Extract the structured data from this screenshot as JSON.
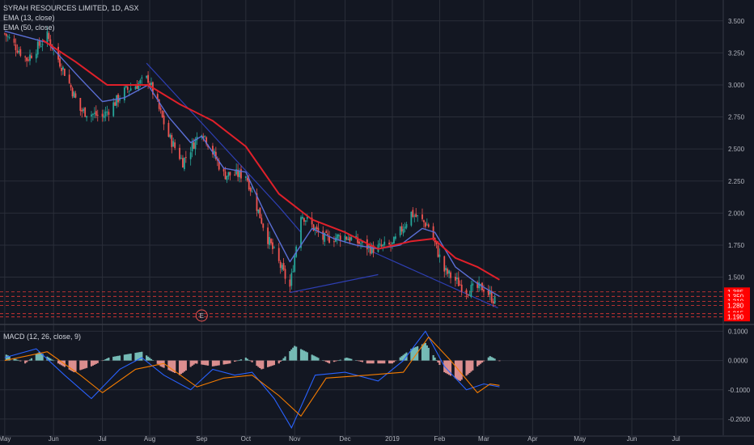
{
  "legend": {
    "symbol": "SYRAH RESOURCES LIMITED, 1D, ASX",
    "ema13": "EMA (13, close)",
    "ema50": "EMA (50, close)",
    "macd": "MACD (12, 26, close, 9)"
  },
  "earnings_marker": "E",
  "colors": {
    "background": "#131722",
    "grid": "#2a2e39",
    "up": "#26a69a",
    "down": "#ef5350",
    "ema13": "#5b6fd6",
    "ema50": "#e0202a",
    "trendline": "#2e3fb3",
    "support": "#e53935",
    "macd_line": "#2962ff",
    "signal_line": "#f57c00",
    "price_tag": "#ff0000"
  },
  "chart_data": [
    {
      "type": "candlestick",
      "title": "SYRAH RESOURCES LIMITED, 1D, ASX",
      "x_tick_labels": [
        "May",
        "Jun",
        "Jul",
        "Aug",
        "Sep",
        "Oct",
        "Nov",
        "Dec",
        "2019",
        "Feb",
        "Mar",
        "Apr",
        "May",
        "Jun",
        "Jul"
      ],
      "y_tick_labels": [
        "3.500",
        "3.250",
        "3.000",
        "2.750",
        "2.500",
        "2.250",
        "2.000",
        "1.750",
        "1.500"
      ],
      "ylim": [
        1.15,
        3.65
      ],
      "grid": true,
      "close_path": [
        {
          "x": "2018-05-01",
          "y": 3.4
        },
        {
          "x": "2018-05-15",
          "y": 3.2
        },
        {
          "x": "2018-05-28",
          "y": 3.38
        },
        {
          "x": "2018-06-08",
          "y": 3.1
        },
        {
          "x": "2018-06-18",
          "y": 2.8
        },
        {
          "x": "2018-07-02",
          "y": 2.75
        },
        {
          "x": "2018-07-16",
          "y": 2.95
        },
        {
          "x": "2018-07-31",
          "y": 3.05
        },
        {
          "x": "2018-08-13",
          "y": 2.6
        },
        {
          "x": "2018-08-22",
          "y": 2.4
        },
        {
          "x": "2018-09-03",
          "y": 2.65
        },
        {
          "x": "2018-09-17",
          "y": 2.3
        },
        {
          "x": "2018-10-01",
          "y": 2.3
        },
        {
          "x": "2018-10-15",
          "y": 1.8
        },
        {
          "x": "2018-10-29",
          "y": 1.42
        },
        {
          "x": "2018-11-05",
          "y": 2.0
        },
        {
          "x": "2018-11-19",
          "y": 1.8
        },
        {
          "x": "2018-12-03",
          "y": 1.82
        },
        {
          "x": "2018-12-20",
          "y": 1.72
        },
        {
          "x": "2019-01-02",
          "y": 1.75
        },
        {
          "x": "2019-01-14",
          "y": 2.0
        },
        {
          "x": "2019-01-25",
          "y": 1.9
        },
        {
          "x": "2019-02-04",
          "y": 1.55
        },
        {
          "x": "2019-02-18",
          "y": 1.4
        },
        {
          "x": "2019-03-01",
          "y": 1.42
        },
        {
          "x": "2019-03-10",
          "y": 1.28
        }
      ],
      "series": [
        {
          "name": "EMA (13, close)",
          "values": [
            {
              "x": "2018-05-01",
              "y": 3.42
            },
            {
              "x": "2018-05-28",
              "y": 3.33
            },
            {
              "x": "2018-06-18",
              "y": 3.05
            },
            {
              "x": "2018-07-02",
              "y": 2.87
            },
            {
              "x": "2018-07-16",
              "y": 2.9
            },
            {
              "x": "2018-07-31",
              "y": 3.0
            },
            {
              "x": "2018-08-13",
              "y": 2.75
            },
            {
              "x": "2018-08-27",
              "y": 2.55
            },
            {
              "x": "2018-09-03",
              "y": 2.6
            },
            {
              "x": "2018-09-17",
              "y": 2.35
            },
            {
              "x": "2018-10-01",
              "y": 2.32
            },
            {
              "x": "2018-10-15",
              "y": 1.95
            },
            {
              "x": "2018-10-29",
              "y": 1.62
            },
            {
              "x": "2018-11-12",
              "y": 1.88
            },
            {
              "x": "2018-11-26",
              "y": 1.8
            },
            {
              "x": "2018-12-10",
              "y": 1.75
            },
            {
              "x": "2018-12-24",
              "y": 1.72
            },
            {
              "x": "2019-01-07",
              "y": 1.75
            },
            {
              "x": "2019-01-21",
              "y": 1.88
            },
            {
              "x": "2019-01-29",
              "y": 1.85
            },
            {
              "x": "2019-02-11",
              "y": 1.58
            },
            {
              "x": "2019-02-25",
              "y": 1.45
            },
            {
              "x": "2019-03-11",
              "y": 1.35
            }
          ]
        },
        {
          "name": "EMA (50, close)",
          "values": [
            {
              "x": "2018-05-25",
              "y": 3.35
            },
            {
              "x": "2018-06-15",
              "y": 3.18
            },
            {
              "x": "2018-07-05",
              "y": 3.0
            },
            {
              "x": "2018-07-31",
              "y": 3.0
            },
            {
              "x": "2018-08-20",
              "y": 2.85
            },
            {
              "x": "2018-09-10",
              "y": 2.72
            },
            {
              "x": "2018-10-01",
              "y": 2.52
            },
            {
              "x": "2018-10-22",
              "y": 2.15
            },
            {
              "x": "2018-11-12",
              "y": 1.95
            },
            {
              "x": "2018-12-03",
              "y": 1.85
            },
            {
              "x": "2018-12-24",
              "y": 1.72
            },
            {
              "x": "2019-01-14",
              "y": 1.78
            },
            {
              "x": "2019-01-28",
              "y": 1.8
            },
            {
              "x": "2019-02-11",
              "y": 1.65
            },
            {
              "x": "2019-02-25",
              "y": 1.58
            },
            {
              "x": "2019-03-11",
              "y": 1.48
            }
          ]
        }
      ],
      "trendlines": [
        [
          {
            "x": "2018-07-30",
            "y": 3.17
          },
          {
            "x": "2018-10-22",
            "y": 2.05
          },
          {
            "x": "2018-11-05",
            "y": 1.85
          }
        ],
        [
          {
            "x": "2018-10-29",
            "y": 1.38
          },
          {
            "x": "2018-12-24",
            "y": 1.52
          }
        ],
        [
          {
            "x": "2018-12-20",
            "y": 1.7
          },
          {
            "x": "2019-03-10",
            "y": 1.26
          }
        ]
      ],
      "support_levels": [
        1.385,
        1.35,
        1.31,
        1.28,
        1.215,
        1.19
      ],
      "price_labels": [
        "1.385",
        "1.350",
        "1.310",
        "1.280",
        "1.215",
        "1.190"
      ]
    },
    {
      "type": "histogram",
      "title": "MACD (12, 26, close, 9)",
      "y_tick_labels": [
        "0.1000",
        "0.0000",
        "-0.1000",
        "-0.2000"
      ],
      "ylim": [
        -0.25,
        0.115
      ],
      "grid": true,
      "histogram": [
        {
          "x": "2018-05-02",
          "y": 0.02
        },
        {
          "x": "2018-05-14",
          "y": -0.01
        },
        {
          "x": "2018-05-23",
          "y": 0.03
        },
        {
          "x": "2018-06-04",
          "y": -0.01
        },
        {
          "x": "2018-06-14",
          "y": -0.04
        },
        {
          "x": "2018-06-25",
          "y": -0.02
        },
        {
          "x": "2018-07-06",
          "y": 0.01
        },
        {
          "x": "2018-07-16",
          "y": 0.02
        },
        {
          "x": "2018-07-27",
          "y": 0.03
        },
        {
          "x": "2018-08-08",
          "y": -0.02
        },
        {
          "x": "2018-08-20",
          "y": -0.05
        },
        {
          "x": "2018-08-30",
          "y": -0.01
        },
        {
          "x": "2018-09-10",
          "y": -0.02
        },
        {
          "x": "2018-09-21",
          "y": -0.01
        },
        {
          "x": "2018-10-01",
          "y": 0.01
        },
        {
          "x": "2018-10-11",
          "y": -0.03
        },
        {
          "x": "2018-10-22",
          "y": -0.01
        },
        {
          "x": "2018-11-01",
          "y": 0.05
        },
        {
          "x": "2018-11-12",
          "y": 0.02
        },
        {
          "x": "2018-11-23",
          "y": -0.01
        },
        {
          "x": "2018-12-04",
          "y": 0.01
        },
        {
          "x": "2018-12-17",
          "y": -0.01
        },
        {
          "x": "2019-01-02",
          "y": -0.01
        },
        {
          "x": "2019-01-14",
          "y": 0.04
        },
        {
          "x": "2019-01-23",
          "y": 0.06
        },
        {
          "x": "2019-02-04",
          "y": -0.04
        },
        {
          "x": "2019-02-14",
          "y": -0.07
        },
        {
          "x": "2019-02-25",
          "y": -0.02
        },
        {
          "x": "2019-03-05",
          "y": 0.015
        },
        {
          "x": "2019-03-11",
          "y": -0.002
        }
      ],
      "series": [
        {
          "name": "MACD",
          "values": [
            {
              "x": "2018-05-01",
              "y": 0.01
            },
            {
              "x": "2018-05-21",
              "y": 0.04
            },
            {
              "x": "2018-06-08",
              "y": -0.05
            },
            {
              "x": "2018-06-25",
              "y": -0.13
            },
            {
              "x": "2018-07-13",
              "y": -0.03
            },
            {
              "x": "2018-07-27",
              "y": 0.01
            },
            {
              "x": "2018-08-10",
              "y": -0.05
            },
            {
              "x": "2018-08-27",
              "y": -0.1
            },
            {
              "x": "2018-09-10",
              "y": -0.03
            },
            {
              "x": "2018-09-24",
              "y": -0.05
            },
            {
              "x": "2018-10-05",
              "y": -0.04
            },
            {
              "x": "2018-10-19",
              "y": -0.13
            },
            {
              "x": "2018-10-30",
              "y": -0.23
            },
            {
              "x": "2018-11-14",
              "y": -0.05
            },
            {
              "x": "2018-12-03",
              "y": -0.04
            },
            {
              "x": "2018-12-24",
              "y": -0.07
            },
            {
              "x": "2019-01-09",
              "y": 0.0
            },
            {
              "x": "2019-01-23",
              "y": 0.1
            },
            {
              "x": "2019-02-04",
              "y": -0.02
            },
            {
              "x": "2019-02-18",
              "y": -0.1
            },
            {
              "x": "2019-03-01",
              "y": -0.08
            },
            {
              "x": "2019-03-11",
              "y": -0.09
            }
          ]
        },
        {
          "name": "Signal",
          "values": [
            {
              "x": "2018-05-01",
              "y": 0.0
            },
            {
              "x": "2018-05-28",
              "y": 0.03
            },
            {
              "x": "2018-06-18",
              "y": -0.05
            },
            {
              "x": "2018-07-02",
              "y": -0.11
            },
            {
              "x": "2018-07-23",
              "y": -0.03
            },
            {
              "x": "2018-08-10",
              "y": -0.01
            },
            {
              "x": "2018-08-31",
              "y": -0.09
            },
            {
              "x": "2018-09-17",
              "y": -0.06
            },
            {
              "x": "2018-10-05",
              "y": -0.05
            },
            {
              "x": "2018-10-22",
              "y": -0.12
            },
            {
              "x": "2018-11-05",
              "y": -0.19
            },
            {
              "x": "2018-11-21",
              "y": -0.06
            },
            {
              "x": "2018-12-17",
              "y": -0.05
            },
            {
              "x": "2019-01-09",
              "y": -0.04
            },
            {
              "x": "2019-01-25",
              "y": 0.08
            },
            {
              "x": "2019-02-08",
              "y": 0.0
            },
            {
              "x": "2019-02-25",
              "y": -0.11
            },
            {
              "x": "2019-03-05",
              "y": -0.08
            },
            {
              "x": "2019-03-11",
              "y": -0.085
            }
          ]
        }
      ]
    }
  ]
}
